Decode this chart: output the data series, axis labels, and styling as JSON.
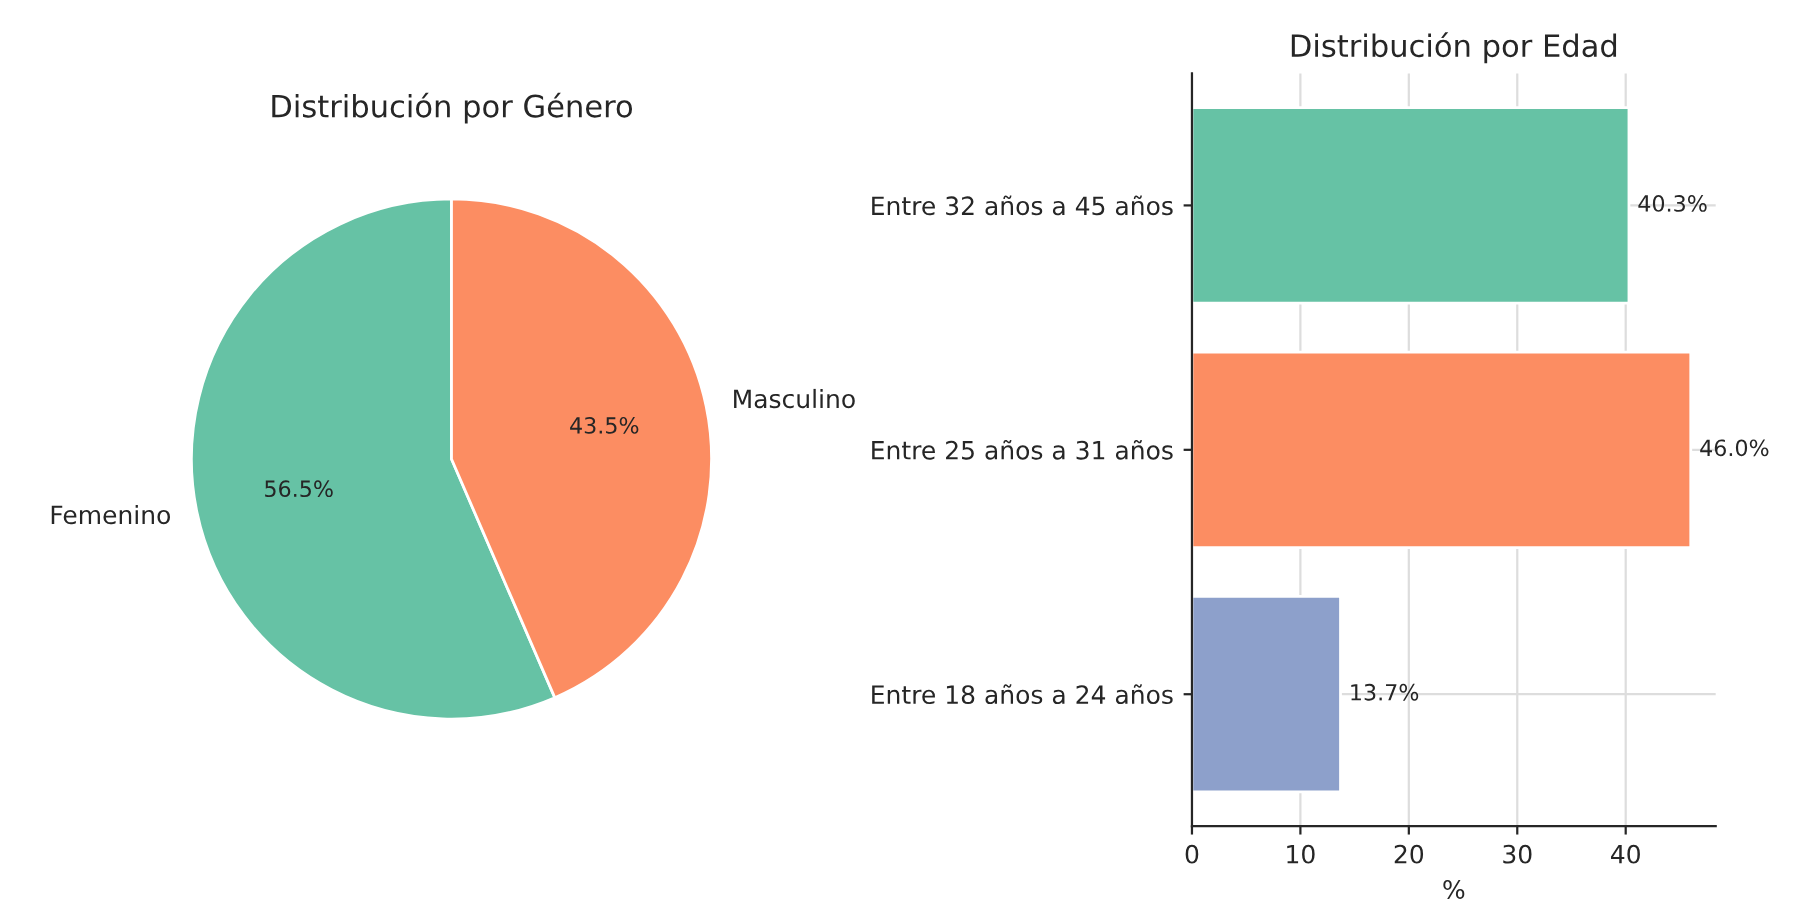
{
  "chart_data": [
    {
      "type": "pie",
      "title": "Distribución por Género",
      "categories": [
        "Femenino",
        "Masculino"
      ],
      "values": [
        56.5,
        43.5
      ],
      "colors": [
        "#66c2a5",
        "#fc8d62"
      ],
      "value_labels": [
        "56.5%",
        "43.5%"
      ]
    },
    {
      "type": "bar",
      "orientation": "horizontal",
      "title": "Distribución por Edad",
      "xlabel": "%",
      "categories": [
        "Entre 32 años a 45 años",
        "Entre 25 años a 31 años",
        "Entre 18 años a 24 años"
      ],
      "values": [
        40.3,
        46.0,
        13.7
      ],
      "colors": [
        "#66c2a5",
        "#fc8d62",
        "#8da0cb"
      ],
      "value_labels": [
        "40.3%",
        "46.0%",
        "13.7%"
      ],
      "xlim": [
        0,
        48.3
      ],
      "xticks": [
        0,
        10,
        20,
        30,
        40
      ],
      "grid": true
    }
  ]
}
